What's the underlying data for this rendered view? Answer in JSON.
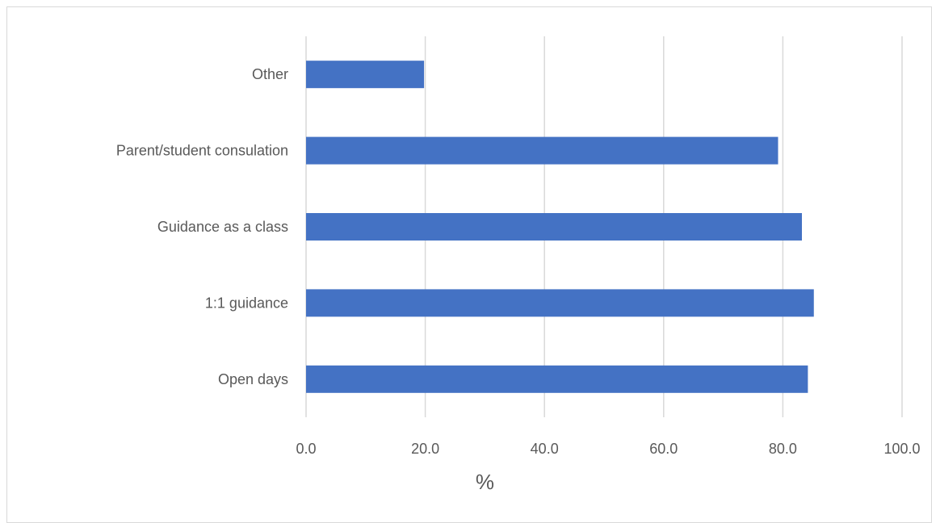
{
  "chart_data": {
    "type": "bar",
    "orientation": "horizontal",
    "categories": [
      "Other",
      "Parent/student consulation",
      "Guidance as a class",
      "1:1 guidance",
      "Open days"
    ],
    "values": [
      19.8,
      79.2,
      83.2,
      85.2,
      84.2
    ],
    "title": "",
    "xlabel": "%",
    "ylabel": "",
    "xlim": [
      0,
      100
    ],
    "xticks": [
      "0.0",
      "20.0",
      "40.0",
      "60.0",
      "80.0",
      "100.0"
    ],
    "grid": true,
    "legend": "none",
    "bar_color": "#4472C4",
    "grid_color": "#D9D9D9",
    "text_color": "#595959"
  }
}
